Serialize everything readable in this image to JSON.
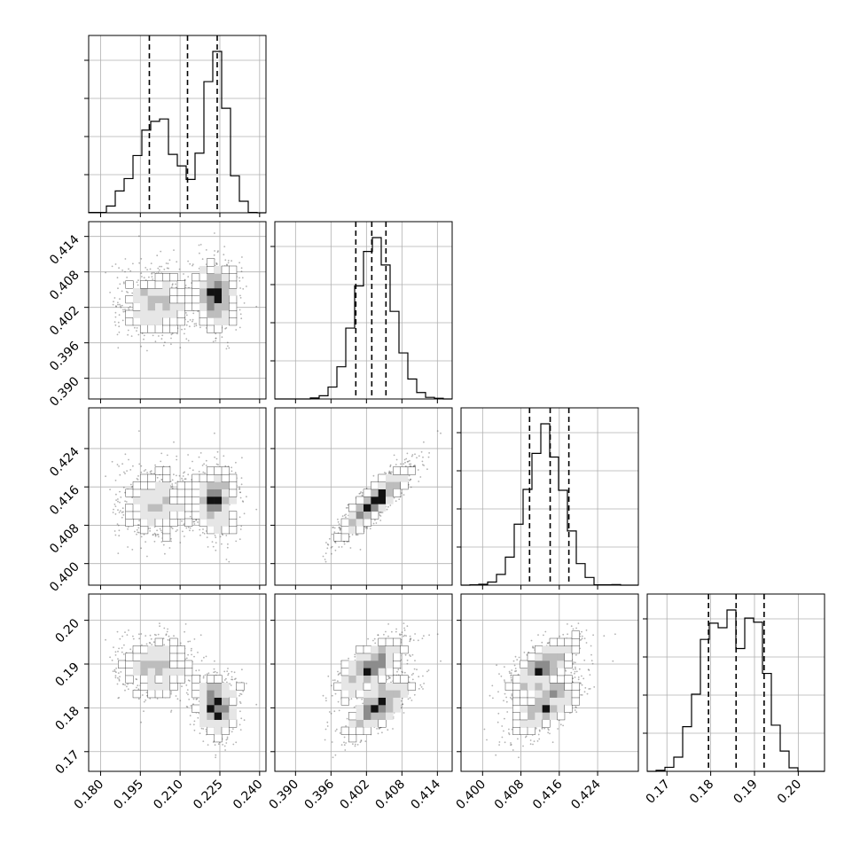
{
  "chart_data": {
    "type": "corner",
    "grid": true,
    "parameters": [
      {
        "id": "p0",
        "range": [
          0.1755,
          0.2424
        ],
        "ticks": [
          "0.180",
          "0.195",
          "0.210",
          "0.225",
          "0.240"
        ],
        "tick_values": [
          0.18,
          0.195,
          0.21,
          0.225,
          0.24
        ],
        "quantiles": [
          0.1984,
          0.2128,
          0.224
        ],
        "hist_peaks": [
          [
            0.2,
            0.55
          ],
          [
            0.223,
            1.0
          ]
        ]
      },
      {
        "id": "p1",
        "range": [
          0.3865,
          0.4165
        ],
        "ticks": [
          "0.390",
          "0.396",
          "0.402",
          "0.408",
          "0.414"
        ],
        "tick_values": [
          0.39,
          0.396,
          0.402,
          0.408,
          0.414
        ],
        "quantiles": [
          0.4002,
          0.4029,
          0.4053
        ],
        "hist_peaks": [
          [
            0.403,
            1.0
          ]
        ]
      },
      {
        "id": "p2",
        "range": [
          0.3955,
          0.4325
        ],
        "ticks": [
          "0.400",
          "0.408",
          "0.416",
          "0.424"
        ],
        "tick_values": [
          0.4,
          0.408,
          0.416,
          0.424
        ],
        "quantiles": [
          0.4098,
          0.4141,
          0.418
        ],
        "hist_peaks": [
          [
            0.414,
            1.0
          ]
        ]
      },
      {
        "id": "p3",
        "range": [
          0.1655,
          0.206
        ],
        "ticks": [
          "0.17",
          "0.18",
          "0.19",
          "0.20"
        ],
        "tick_values": [
          0.17,
          0.18,
          0.19,
          0.2
        ],
        "quantiles": [
          0.1795,
          0.1858,
          0.1922
        ],
        "hist_peaks": [
          [
            0.181,
            0.9
          ],
          [
            0.19,
            1.0
          ]
        ]
      }
    ],
    "y_axis_rows": [
      1,
      2,
      3
    ],
    "x_axis_cols": [
      0,
      1,
      2,
      3
    ],
    "colors": {
      "line": "#000000",
      "points": "#808080",
      "grid": "#b0b0b0"
    }
  }
}
